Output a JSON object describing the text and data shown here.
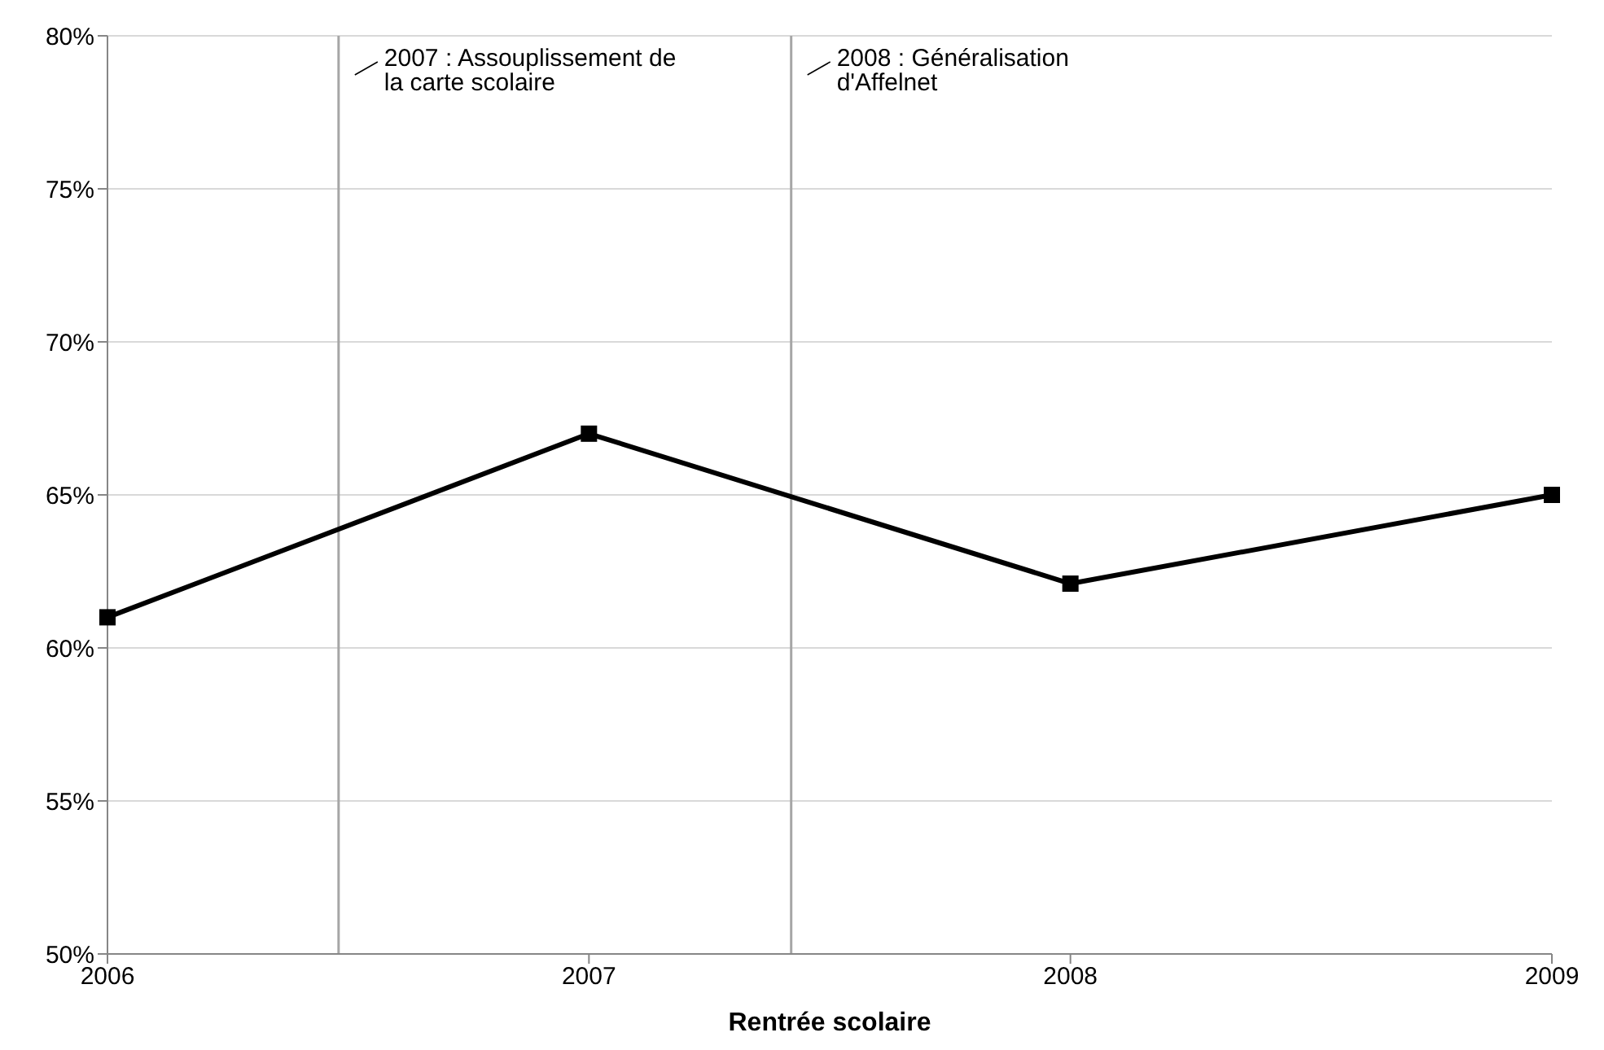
{
  "chart_data": {
    "type": "line",
    "xlabel": "Rentrée scolaire",
    "x": [
      2006,
      2007,
      2008,
      2009
    ],
    "series": [
      {
        "color": "#000000",
        "values": [
          61,
          67,
          62.1,
          65
        ]
      }
    ],
    "xlim": [
      2006,
      2009
    ],
    "xticks": [
      2006,
      2007,
      2008,
      2009
    ],
    "ylim": [
      50,
      80
    ],
    "yticks": [
      {
        "value": 50,
        "label": "50%"
      },
      {
        "value": 55,
        "label": "55%"
      },
      {
        "value": 60,
        "label": "60%"
      },
      {
        "value": 65,
        "label": "65%"
      },
      {
        "value": 70,
        "label": "70%"
      },
      {
        "value": 75,
        "label": "75%"
      },
      {
        "value": 80,
        "label": "80%"
      }
    ],
    "ref_lines": [
      {
        "axis": "x",
        "value": 2006.48,
        "label": "2007 : Assouplissement de la carte scolaire",
        "color": "#a6a6a6"
      },
      {
        "axis": "x",
        "value": 2007.42,
        "label": "2008 : Généralisation d'Affelnet",
        "color": "#a6a6a6"
      }
    ],
    "grid": "y",
    "marker": "square",
    "legend": false
  }
}
